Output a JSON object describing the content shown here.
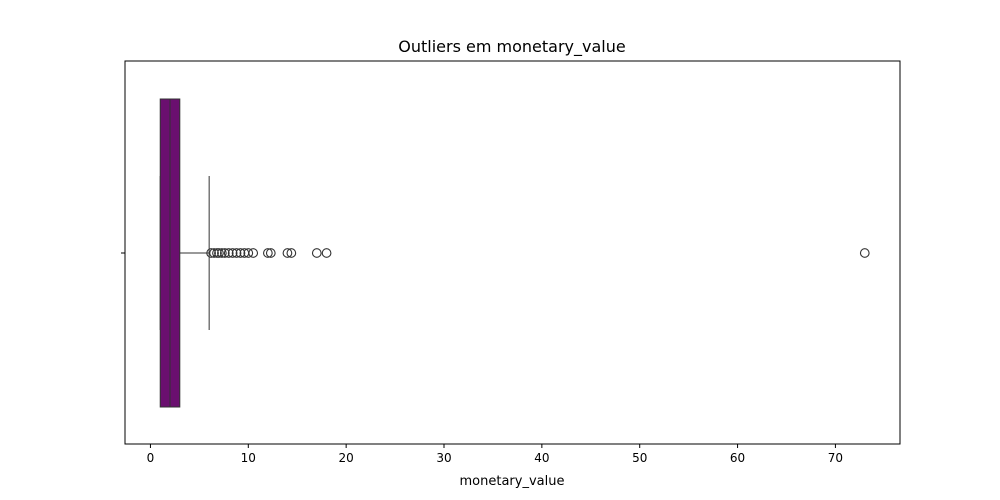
{
  "chart_data": {
    "type": "boxplot",
    "title": "Outliers em monetary_value",
    "xlabel": "monetary_value",
    "ylabel": "",
    "orientation": "horizontal",
    "xlim": [
      -2.6,
      76.6
    ],
    "xticks": [
      0,
      10,
      20,
      30,
      40,
      50,
      60,
      70
    ],
    "xtick_labels": [
      "0",
      "10",
      "20",
      "30",
      "40",
      "50",
      "60",
      "70"
    ],
    "grid": false,
    "legend": "none",
    "box": {
      "q1": 1.0,
      "median": 2.0,
      "q3": 3.0,
      "whisker_low": 1.0,
      "whisker_high": 6.0
    },
    "outliers": [
      6.2,
      6.5,
      6.8,
      7.0,
      7.3,
      7.6,
      8.0,
      8.4,
      8.8,
      9.2,
      9.6,
      10.0,
      10.5,
      12.0,
      12.3,
      14.0,
      14.4,
      17.0,
      18.0,
      73.0
    ],
    "colors": {
      "box_fill": "#6a0f6f",
      "lines": "#333333",
      "outlier_edge": "#333333"
    }
  }
}
